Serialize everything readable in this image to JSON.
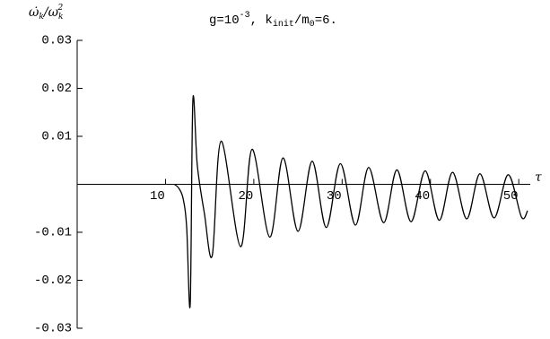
{
  "chart_data": {
    "type": "line",
    "title_parts": [
      "g=10",
      "-3",
      ", k",
      "init",
      "/m",
      "0",
      "=6."
    ],
    "y_label_parts": [
      "ω̇",
      "k",
      "/ω",
      "k",
      "2"
    ],
    "x_label": "τ",
    "x": [
      11,
      11.5,
      12,
      12.4,
      12.8,
      13.1,
      13.6,
      14.4,
      15.3,
      16.3,
      18.5,
      19.8,
      21.8,
      23.3,
      25.0,
      26.6,
      28.2,
      29.8,
      31.5,
      33.0,
      34.7,
      36.2,
      37.8,
      39.4,
      41.0,
      42.5,
      44.1,
      45.6,
      47.2,
      48.8,
      50.3,
      51.0
    ],
    "series": [
      {
        "color": "#000000",
        "values": [
          0,
          -0.0008,
          -0.003,
          -0.009,
          -0.025,
          0.0175,
          0.004,
          -0.006,
          -0.0148,
          0.009,
          -0.013,
          0.0073,
          -0.011,
          0.0055,
          -0.0098,
          0.0048,
          -0.009,
          0.0043,
          -0.0085,
          0.0035,
          -0.008,
          0.003,
          -0.0078,
          0.0028,
          -0.0075,
          0.0025,
          -0.0072,
          0.0022,
          -0.007,
          0.002,
          -0.0068,
          -0.0055
        ]
      }
    ],
    "xlim": [
      0,
      51.3
    ],
    "ylim": [
      -0.03,
      0.03
    ],
    "xticks": [
      10,
      20,
      30,
      40,
      50
    ],
    "yticks": [
      0.03,
      0.02,
      0.01,
      -0.01,
      -0.02,
      -0.03
    ]
  }
}
